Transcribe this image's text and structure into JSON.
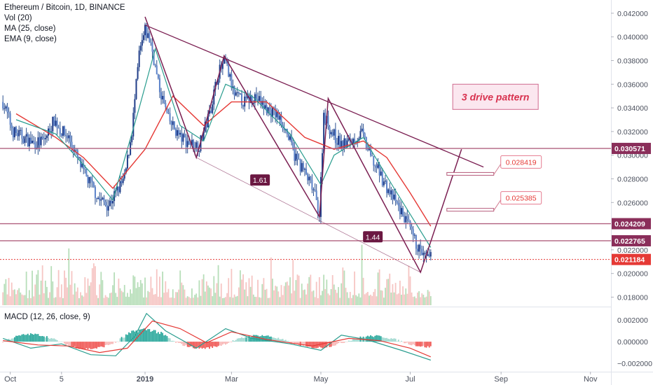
{
  "legend": {
    "symbol": "Ethereum / Bitcoin, 1D, BINANCE",
    "volume": "Vol (20)",
    "ma": "MA (25, close)",
    "ema": "EMA (9, close)",
    "macd": "MACD (12, 26, close, 9)"
  },
  "colors": {
    "up": "#26a69a",
    "down": "#ef5350",
    "candle_up_body": "#3d6fb5",
    "candle_down_body": "#3d6fb5",
    "pattern": "#7b1f52",
    "level_line": "#b0607f",
    "price_line": "#e53935",
    "ma": "#e53935",
    "ema": "#2a9d8f",
    "macd_line": "#2a9d8f",
    "signal_line": "#e53935"
  },
  "price_axis": {
    "ticks": [
      "0.042000",
      "0.040000",
      "0.038000",
      "0.036000",
      "0.034000",
      "0.032000",
      "0.030000",
      "0.028000",
      "0.026000",
      "0.022000",
      "0.020000",
      "0.018000"
    ],
    "labels": [
      {
        "text": "0.030571",
        "value": 0.030571,
        "style": "level"
      },
      {
        "text": "0.024209",
        "value": 0.024209,
        "style": "level"
      },
      {
        "text": "0.022765",
        "value": 0.022765,
        "style": "level"
      },
      {
        "text": "0.021184",
        "value": 0.021184,
        "style": "price"
      }
    ]
  },
  "macd_axis": {
    "ticks": [
      "0.002000",
      "0.000000",
      "−0.002000"
    ]
  },
  "x_axis": {
    "ticks": [
      {
        "label": "Oct",
        "date": "2018-10-01",
        "bold": false
      },
      {
        "label": "5",
        "date": "2018-11-05",
        "bold": false
      },
      {
        "label": "2019",
        "date": "2019-01-01",
        "bold": true
      },
      {
        "label": "Mar",
        "date": "2019-03-01",
        "bold": false
      },
      {
        "label": "May",
        "date": "2019-05-01",
        "bold": false
      },
      {
        "label": "Jul",
        "date": "2019-07-01",
        "bold": false
      },
      {
        "label": "Sep",
        "date": "2019-09-01",
        "bold": false
      },
      {
        "label": "Nov",
        "date": "2019-11-01",
        "bold": false
      }
    ]
  },
  "annotations": {
    "title_box": "3 drive pattern",
    "ratio_1": "1.61",
    "ratio_2": "1.44",
    "target_1": "0.028419",
    "target_2": "0.025385"
  },
  "chart_data": {
    "type": "candlestick",
    "symbol": "ETHBTC",
    "interval": "1D",
    "exchange": "BINANCE",
    "x_range": [
      "2018-09-24",
      "2019-11-15"
    ],
    "y_range": [
      0.0172,
      0.043
    ],
    "close_path": [
      [
        "2018-09-26",
        0.0345
      ],
      [
        "2018-10-03",
        0.032
      ],
      [
        "2018-10-10",
        0.0315
      ],
      [
        "2018-10-17",
        0.031
      ],
      [
        "2018-10-24",
        0.0312
      ],
      [
        "2018-10-31",
        0.033
      ],
      [
        "2018-11-05",
        0.032
      ],
      [
        "2018-11-10",
        0.0315
      ],
      [
        "2018-11-15",
        0.03
      ],
      [
        "2018-11-20",
        0.0285
      ],
      [
        "2018-11-25",
        0.0275
      ],
      [
        "2018-12-01",
        0.0262
      ],
      [
        "2018-12-07",
        0.0258
      ],
      [
        "2018-12-12",
        0.0268
      ],
      [
        "2018-12-18",
        0.028
      ],
      [
        "2018-12-23",
        0.032
      ],
      [
        "2018-12-28",
        0.0385
      ],
      [
        "2019-01-01",
        0.0405
      ],
      [
        "2019-01-05",
        0.0395
      ],
      [
        "2019-01-10",
        0.036
      ],
      [
        "2019-01-17",
        0.033
      ],
      [
        "2019-01-25",
        0.0315
      ],
      [
        "2019-02-01",
        0.031
      ],
      [
        "2019-02-07",
        0.0308
      ],
      [
        "2019-02-14",
        0.0335
      ],
      [
        "2019-02-20",
        0.037
      ],
      [
        "2019-02-25",
        0.0378
      ],
      [
        "2019-03-03",
        0.035
      ],
      [
        "2019-03-10",
        0.0345
      ],
      [
        "2019-03-17",
        0.035
      ],
      [
        "2019-03-24",
        0.034
      ],
      [
        "2019-03-31",
        0.0335
      ],
      [
        "2019-04-06",
        0.0325
      ],
      [
        "2019-04-13",
        0.03
      ],
      [
        "2019-04-20",
        0.0285
      ],
      [
        "2019-04-26",
        0.027
      ],
      [
        "2019-04-30",
        0.025
      ],
      [
        "2019-05-03",
        0.0335
      ],
      [
        "2019-05-08",
        0.032
      ],
      [
        "2019-05-15",
        0.0308
      ],
      [
        "2019-05-22",
        0.0312
      ],
      [
        "2019-05-29",
        0.0318
      ],
      [
        "2019-06-04",
        0.0298
      ],
      [
        "2019-06-10",
        0.0285
      ],
      [
        "2019-06-16",
        0.027
      ],
      [
        "2019-06-22",
        0.0258
      ],
      [
        "2019-06-28",
        0.0245
      ],
      [
        "2019-07-03",
        0.023
      ],
      [
        "2019-07-08",
        0.0218
      ],
      [
        "2019-07-12",
        0.0212
      ],
      [
        "2019-07-15",
        0.0213
      ]
    ],
    "moving_average_25": [
      [
        "2018-10-05",
        0.0335
      ],
      [
        "2018-11-01",
        0.0315
      ],
      [
        "2018-11-20",
        0.0298
      ],
      [
        "2018-12-10",
        0.0272
      ],
      [
        "2019-01-01",
        0.0305
      ],
      [
        "2019-01-20",
        0.035
      ],
      [
        "2019-02-10",
        0.0325
      ],
      [
        "2019-03-01",
        0.0345
      ],
      [
        "2019-03-25",
        0.0345
      ],
      [
        "2019-04-20",
        0.0315
      ],
      [
        "2019-05-10",
        0.0305
      ],
      [
        "2019-05-30",
        0.0312
      ],
      [
        "2019-06-15",
        0.0298
      ],
      [
        "2019-07-01",
        0.0268
      ],
      [
        "2019-07-15",
        0.024
      ]
    ],
    "ema_9": [
      [
        "2018-10-05",
        0.033
      ],
      [
        "2018-11-01",
        0.0318
      ],
      [
        "2018-11-25",
        0.0285
      ],
      [
        "2018-12-10",
        0.0262
      ],
      [
        "2018-12-28",
        0.034
      ],
      [
        "2019-01-08",
        0.039
      ],
      [
        "2019-01-25",
        0.0325
      ],
      [
        "2019-02-10",
        0.0312
      ],
      [
        "2019-02-25",
        0.036
      ],
      [
        "2019-03-15",
        0.035
      ],
      [
        "2019-04-10",
        0.0318
      ],
      [
        "2019-05-01",
        0.0275
      ],
      [
        "2019-05-10",
        0.03
      ],
      [
        "2019-05-30",
        0.0315
      ],
      [
        "2019-06-20",
        0.0272
      ],
      [
        "2019-07-15",
        0.0222
      ]
    ],
    "three_drive_pattern": [
      [
        "2019-01-01",
        0.0417
      ],
      [
        "2019-02-05",
        0.0298
      ],
      [
        "2019-02-24",
        0.0384
      ],
      [
        "2019-04-30",
        0.0248
      ],
      [
        "2019-05-06",
        0.0348
      ],
      [
        "2019-07-08",
        0.0201
      ],
      [
        "2019-08-05",
        0.0305
      ]
    ],
    "upper_trendline": [
      [
        "2019-01-01",
        0.041
      ],
      [
        "2019-08-20",
        0.029
      ]
    ],
    "lower_trendline": [
      [
        "2019-02-05",
        0.0298
      ],
      [
        "2019-07-08",
        0.0201
      ]
    ],
    "ratios": [
      {
        "label": "1.61",
        "date": "2019-03-20",
        "value": 0.0279
      },
      {
        "label": "1.44",
        "date": "2019-06-05",
        "value": 0.0231
      }
    ],
    "horizontal_levels": [
      0.030571,
      0.024209,
      0.022765
    ],
    "last_price": 0.021184,
    "targets": [
      {
        "label": "0.028419",
        "value": 0.028419,
        "from": "2019-07-26",
        "to": "2019-08-27"
      },
      {
        "label": "0.025385",
        "value": 0.025385,
        "from": "2019-07-26",
        "to": "2019-08-27"
      }
    ],
    "volume_range": [
      0,
      1
    ],
    "macd_range": [
      -0.0027,
      0.0031
    ]
  }
}
